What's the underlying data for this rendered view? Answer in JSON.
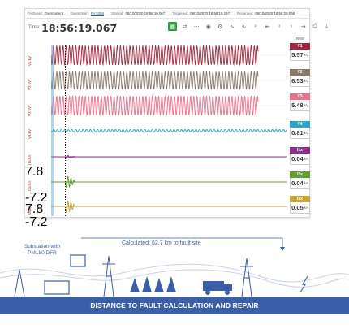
{
  "topbar": {
    "fa_event_label": "FA Event:",
    "fa_event_value": "Overcurrent",
    "event_num_label": "Event Num:",
    "event_num_value": "FA 5266",
    "started_label": "Started:",
    "started_value": "08/10/2020 18:56:19.067",
    "triggered_label": "Triggered:",
    "triggered_value": "08/10/2020 18:56:19.167",
    "recorded_label": "Recorded:",
    "recorded_value": "08/10/2020 18:56:20.068"
  },
  "time": {
    "label": "Time",
    "value": "18:56:19.067"
  },
  "toolbar": {
    "icons": [
      "grid-view-icon",
      "shuffle-icon",
      "dots-icon",
      "eye-icon",
      "settings-icon",
      "waveform-icon",
      "waveform-alt-icon",
      "zoom-icon",
      "first-icon",
      "prev-icon",
      "next-icon",
      "last-icon",
      "print-icon",
      "download-icon"
    ]
  },
  "rms_header": "RMS",
  "channels": [
    {
      "ylabel": "V1:kV",
      "rms_name": "V1",
      "rms_value": "5.57",
      "rms_unit": "kV",
      "color": "#a0283c"
    },
    {
      "ylabel": "V2:kV",
      "rms_name": "V2",
      "rms_value": "6.53",
      "rms_unit": "kV",
      "color": "#8a7a6a"
    },
    {
      "ylabel": "V3:kV",
      "rms_name": "V3",
      "rms_value": "5.48",
      "rms_unit": "kV",
      "color": "#e8738a"
    },
    {
      "ylabel": "V4:kV",
      "rms_name": "V4",
      "rms_value": "0.81",
      "rms_unit": "kV",
      "color": "#2ea6c9"
    },
    {
      "ylabel": "I1x:kA",
      "rms_name": "I1x",
      "rms_value": "0.04",
      "rms_unit": "kA",
      "color": "#8b2f8a"
    },
    {
      "ylabel": "I2x:kA",
      "rms_name": "I2x",
      "rms_value": "0.04",
      "rms_unit": "kA",
      "color": "#62a032"
    },
    {
      "ylabel": "I3x:kA",
      "rms_name": "I3x",
      "rms_value": "0.05",
      "rms_unit": "kA",
      "color": "#c9a63a"
    }
  ],
  "ticks": {
    "t1": "7.8",
    "t2": "-7.2",
    "t3": "7.8",
    "t4": "-7.2"
  },
  "bottom": {
    "substation": "Substation with PM180 DFR",
    "calculated": "Calculated: 62.7 km to fault site",
    "banner": "DISTANCE TO FAULT CALCULATION AND REPAIR"
  }
}
